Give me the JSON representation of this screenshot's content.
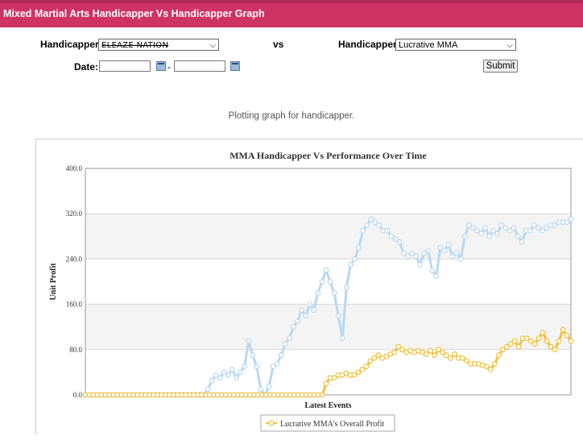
{
  "header": {
    "title": "Mixed Martial Arts Handicapper Vs Handicapper Graph"
  },
  "form": {
    "handicapper_label": "Handicapper:",
    "handicapper1_value": "ELEAZE NATION",
    "vs_label": "vs",
    "handicapper2_label": "Handicapper:",
    "handicapper2_value": "Lucrative MMA",
    "date_label": "Date:",
    "date_separator": "-",
    "submit_label": "Submit"
  },
  "status_text": "Plotting graph for handicapper.",
  "colors": {
    "header": "#cd3464",
    "series_blue": "#b8d8f0",
    "series_gold": "#f0c040"
  },
  "chart_data": {
    "type": "line",
    "title": "MMA Handicapper Vs Performance Over Time",
    "xlabel": "Latest Events",
    "ylabel": "Unit Profit",
    "ylim": [
      0,
      400
    ],
    "yticks": [
      "0.0",
      "80.0",
      "160.0",
      "240.0",
      "320.0",
      "400.0"
    ],
    "grid": "horizontal",
    "legend_position": "bottom",
    "series": [
      {
        "color": "#b8d8f0",
        "values": [
          0,
          0,
          0,
          0,
          0,
          0,
          0,
          0,
          0,
          0,
          0,
          0,
          0,
          0,
          0,
          0,
          0,
          0,
          0,
          0,
          0,
          0,
          0,
          0,
          0,
          0,
          0,
          0,
          0,
          0,
          10,
          25,
          35,
          30,
          40,
          35,
          45,
          30,
          40,
          50,
          95,
          70,
          50,
          10,
          0,
          15,
          50,
          55,
          70,
          90,
          100,
          120,
          130,
          150,
          140,
          160,
          150,
          180,
          200,
          220,
          200,
          180,
          140,
          100,
          190,
          230,
          240,
          260,
          290,
          300,
          310,
          305,
          300,
          290,
          290,
          280,
          275,
          270,
          250,
          245,
          250,
          245,
          230,
          250,
          255,
          220,
          210,
          260,
          255,
          265,
          245,
          250,
          240,
          280,
          300,
          295,
          290,
          285,
          295,
          280,
          290,
          285,
          300,
          295,
          290,
          295,
          280,
          270,
          290,
          290,
          300,
          295,
          290,
          295,
          300,
          300,
          305,
          305,
          305,
          310
        ]
      },
      {
        "name": "Lucrative MMA's Overall Profit",
        "color": "#f0c040",
        "values": [
          0,
          0,
          0,
          0,
          0,
          0,
          0,
          0,
          0,
          0,
          0,
          0,
          0,
          0,
          0,
          0,
          0,
          0,
          0,
          0,
          0,
          0,
          0,
          0,
          0,
          0,
          0,
          0,
          0,
          0,
          0,
          0,
          0,
          0,
          0,
          0,
          0,
          0,
          0,
          0,
          0,
          0,
          0,
          0,
          0,
          0,
          0,
          0,
          0,
          0,
          0,
          0,
          0,
          0,
          0,
          0,
          0,
          0,
          0,
          0,
          20,
          30,
          30,
          35,
          35,
          38,
          35,
          35,
          40,
          45,
          50,
          60,
          65,
          70,
          65,
          68,
          72,
          75,
          85,
          80,
          75,
          78,
          75,
          78,
          75,
          72,
          78,
          70,
          80,
          75,
          70,
          65,
          72,
          65,
          65,
          60,
          55,
          55,
          55,
          52,
          50,
          45,
          55,
          70,
          80,
          85,
          90,
          95,
          85,
          100,
          100,
          95,
          90,
          100,
          110,
          95,
          85,
          80,
          95,
          115,
          105,
          95
        ]
      }
    ]
  }
}
